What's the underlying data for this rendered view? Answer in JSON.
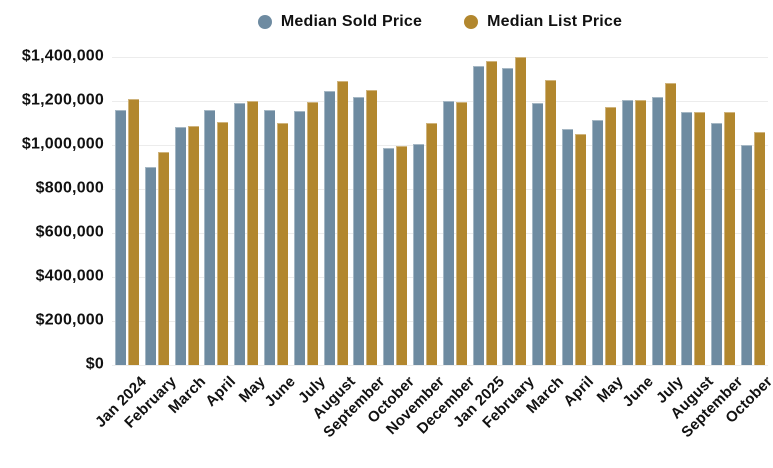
{
  "legend": {
    "items": [
      {
        "label": "Median Sold Price",
        "color": "#6e8ba1"
      },
      {
        "label": "Median List Price",
        "color": "#b2872e"
      }
    ]
  },
  "chart_data": {
    "type": "bar",
    "categories": [
      "Jan 2024",
      "February",
      "March",
      "April",
      "May",
      "June",
      "July",
      "August",
      "September",
      "October",
      "November",
      "December",
      "Jan 2025",
      "February",
      "March",
      "April",
      "May",
      "June",
      "July",
      "August",
      "September",
      "October"
    ],
    "series": [
      {
        "name": "Median Sold Price",
        "color": "#6e8ba1",
        "values": [
          1160000,
          900000,
          1080000,
          1160000,
          1190000,
          1160000,
          1155000,
          1245000,
          1220000,
          985000,
          1005000,
          1200000,
          1360000,
          1350000,
          1190000,
          1075000,
          1115000,
          1205000,
          1220000,
          1150000,
          1100000,
          1000000
        ]
      },
      {
        "name": "Median List Price",
        "color": "#b2872e",
        "values": [
          1210000,
          970000,
          1085000,
          1105000,
          1200000,
          1100000,
          1195000,
          1290000,
          1250000,
          995000,
          1100000,
          1195000,
          1380000,
          1400000,
          1295000,
          1050000,
          1175000,
          1205000,
          1280000,
          1150000,
          1150000,
          1060000
        ]
      }
    ],
    "ylim": [
      0,
      1400000
    ],
    "ytick_step": 200000,
    "ytick_labels": [
      "$0",
      "$200,000",
      "$400,000",
      "$600,000",
      "$800,000",
      "$1,000,000",
      "$1,200,000",
      "$1,400,000"
    ],
    "grid": true,
    "grid_color": "#ececec",
    "legend_position": "top-center"
  }
}
